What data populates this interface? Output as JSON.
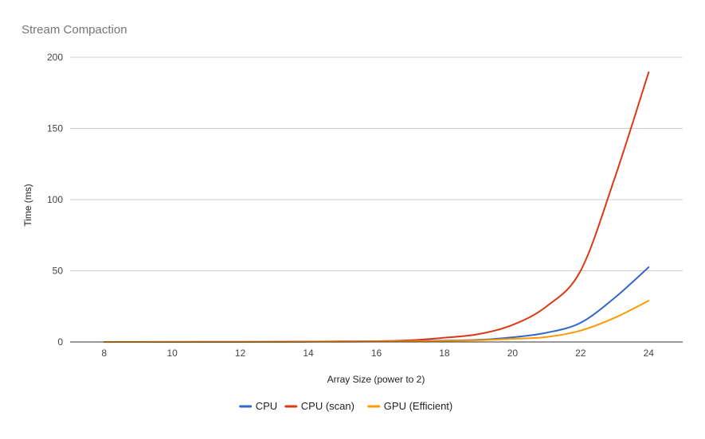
{
  "chart_data": {
    "type": "line",
    "title": "Stream Compaction",
    "xlabel": "Array Size (power to 2)",
    "ylabel": "Time (ms)",
    "x": [
      8,
      9,
      10,
      11,
      12,
      13,
      14,
      15,
      16,
      17,
      18,
      19,
      20,
      21,
      22,
      23,
      24
    ],
    "x_ticks": [
      8,
      10,
      12,
      14,
      16,
      18,
      20,
      22,
      24
    ],
    "xlim": [
      7,
      25
    ],
    "ylim": [
      0,
      200
    ],
    "y_ticks": [
      0,
      50,
      100,
      150,
      200
    ],
    "grid": true,
    "legend_position": "bottom",
    "series": [
      {
        "name": "CPU",
        "color": "#3366cc",
        "values": [
          0.01,
          0.02,
          0.03,
          0.05,
          0.08,
          0.12,
          0.2,
          0.35,
          0.45,
          0.6,
          1.0,
          1.5,
          3.3,
          6.5,
          13.5,
          31.0,
          52.5
        ]
      },
      {
        "name": "CPU (scan)",
        "color": "#dc3912",
        "values": [
          0.02,
          0.03,
          0.05,
          0.08,
          0.1,
          0.15,
          0.25,
          0.4,
          0.55,
          1.2,
          3.0,
          5.5,
          12.0,
          25.0,
          50.0,
          115.0,
          189.5
        ]
      },
      {
        "name": "GPU (Efficient)",
        "color": "#ff9900",
        "values": [
          0.05,
          0.05,
          0.05,
          0.05,
          0.05,
          0.05,
          0.1,
          0.15,
          0.25,
          0.4,
          0.8,
          1.2,
          2.2,
          3.5,
          8.0,
          17.0,
          29.0
        ]
      }
    ]
  }
}
